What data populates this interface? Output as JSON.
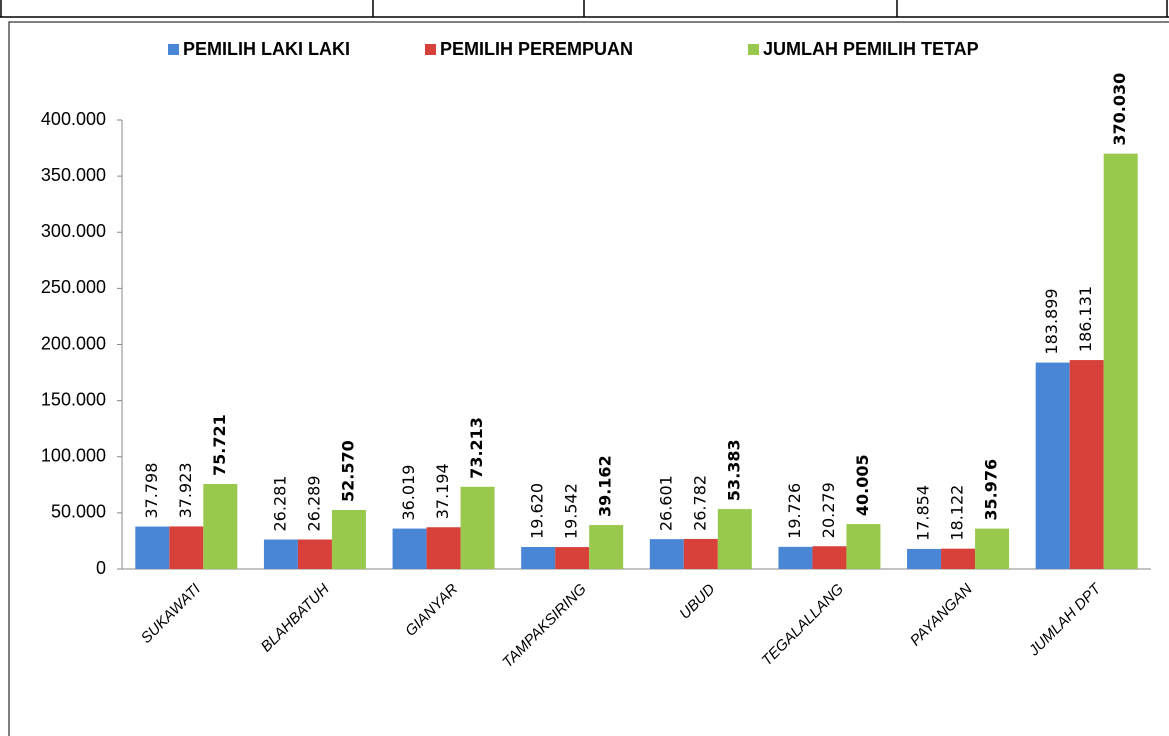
{
  "chart_data": {
    "type": "bar",
    "categories": [
      "SUKAWATI",
      "BLAHBATUH",
      "GIANYAR",
      "TAMPAKSIRING",
      "UBUD",
      "TEGALALLANG",
      "PAYANGAN",
      "JUMLAH DPT"
    ],
    "series": [
      {
        "name": "PEMILIH LAKI LAKI",
        "color": "#4a86d6",
        "values": [
          37798,
          26281,
          36019,
          19620,
          26601,
          19726,
          17854,
          183899
        ],
        "value_labels": [
          "37.798",
          "26.281",
          "36.019",
          "19.620",
          "26.601",
          "19.726",
          "17.854",
          "183.899"
        ]
      },
      {
        "name": "PEMILIH PEREMPUAN",
        "color": "#d8413a",
        "values": [
          37923,
          26289,
          37194,
          19542,
          26782,
          20279,
          18122,
          186131
        ],
        "value_labels": [
          "37.923",
          "26.289",
          "37.194",
          "19.542",
          "26.782",
          "20.279",
          "18.122",
          "186.131"
        ]
      },
      {
        "name": "JUMLAH PEMILIH TETAP",
        "color": "#99c94c",
        "values": [
          75721,
          52570,
          73213,
          39162,
          53383,
          40005,
          35976,
          370030
        ],
        "value_labels": [
          "75.721",
          "52.570",
          "73.213",
          "39.162",
          "53.383",
          "40.005",
          "35.976",
          "370.030"
        ]
      }
    ],
    "ylim": [
      0,
      400000
    ],
    "yticks": [
      0,
      {
        "value": 50000,
        "label": "50.000"
      },
      {
        "value": 100000,
        "label": "100.000"
      },
      {
        "value": 150000,
        "label": "150.000"
      },
      {
        "value": 200000,
        "label": "200.000"
      },
      {
        "value": 250000,
        "label": "250.000"
      },
      {
        "value": 300000,
        "label": "300.000"
      },
      {
        "value": 350000,
        "label": "350.000"
      },
      {
        "value": 400000,
        "label": "400.000"
      }
    ]
  }
}
